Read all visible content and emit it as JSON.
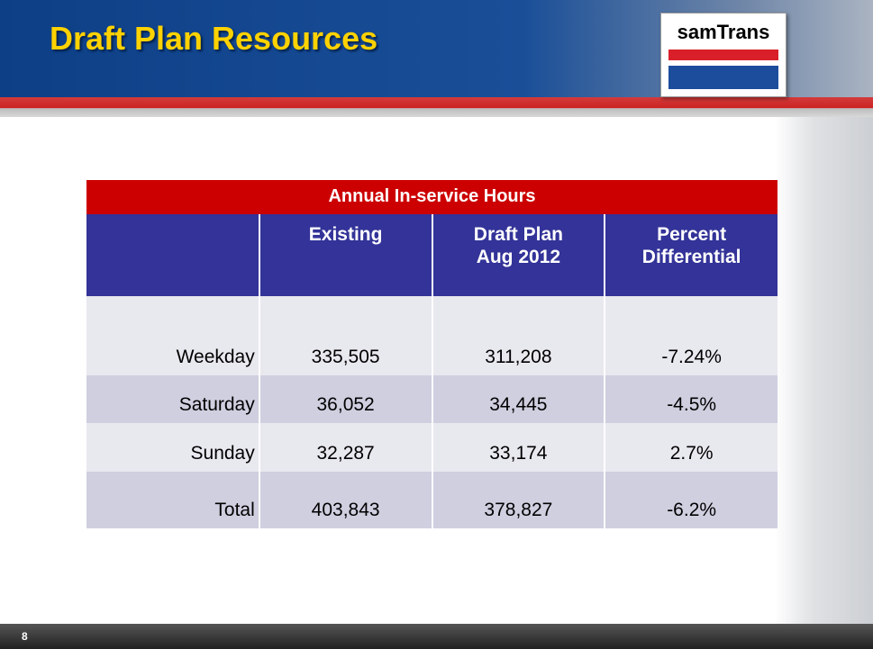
{
  "header": {
    "title": "Draft Plan Resources",
    "logo": "samTrans"
  },
  "table": {
    "caption": "Annual In-service Hours",
    "columns": [
      [
        "Existing"
      ],
      [
        "Draft Plan",
        "Aug 2012"
      ],
      [
        "Percent",
        "Differential"
      ]
    ],
    "rows": [
      [
        "Weekday",
        "335,505",
        "311,208",
        "-7.24%"
      ],
      [
        "Saturday",
        "36,052",
        "34,445",
        "-4.5%"
      ],
      [
        "Sunday",
        "32,287",
        "33,174",
        "2.7%"
      ],
      [
        "Total",
        "403,843",
        "378,827",
        "-6.2%"
      ]
    ]
  },
  "footer": {
    "page": "8"
  }
}
